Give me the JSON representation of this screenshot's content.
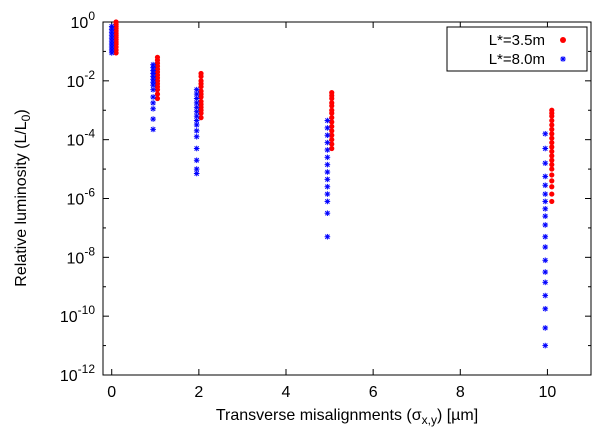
{
  "chart_data": {
    "type": "scatter",
    "xlabel": "Transverse misalignments (σx,y) [µm]",
    "xlabel_parts": {
      "before": "Transverse misalignments (σ",
      "sub": "x,y",
      "after": ") [µm]"
    },
    "ylabel": "Relative luminosity (L/L0)",
    "ylabel_parts": {
      "before": "Relative luminosity (L/L",
      "sub": "0",
      "after": ")"
    },
    "xlim": [
      -0.2,
      11
    ],
    "ylim_log10": [
      -12,
      0
    ],
    "y_scale": "log",
    "x_ticks": [
      0,
      2,
      4,
      6,
      8,
      10
    ],
    "x_tick_labels": [
      "0",
      "2",
      "4",
      "6",
      "8",
      "10"
    ],
    "y_ticks_log10": [
      0,
      -2,
      -4,
      -6,
      -8,
      -10,
      -12
    ],
    "y_tick_base": "10",
    "y_tick_exponents": [
      "0",
      "-2",
      "-4",
      "-6",
      "-8",
      "-10",
      "-12"
    ],
    "grid": false,
    "legend_position": "top-right",
    "series": [
      {
        "name": "L*=3.5m",
        "color": "#ff0000",
        "marker": "circle",
        "points": [
          [
            0.1,
            0.0
          ],
          [
            0.1,
            -0.08
          ],
          [
            0.1,
            -0.15
          ],
          [
            0.1,
            -0.22
          ],
          [
            0.1,
            -0.3
          ],
          [
            0.1,
            -0.38
          ],
          [
            0.1,
            -0.45
          ],
          [
            0.1,
            -0.52
          ],
          [
            0.1,
            -0.6
          ],
          [
            0.1,
            -0.68
          ],
          [
            0.1,
            -0.75
          ],
          [
            0.1,
            -0.85
          ],
          [
            0.1,
            -0.95
          ],
          [
            0.1,
            -1.05
          ],
          [
            1.05,
            -1.2
          ],
          [
            1.05,
            -1.3
          ],
          [
            1.05,
            -1.4
          ],
          [
            1.05,
            -1.5
          ],
          [
            1.05,
            -1.6
          ],
          [
            1.05,
            -1.7
          ],
          [
            1.05,
            -1.8
          ],
          [
            1.05,
            -1.9
          ],
          [
            1.05,
            -2.0
          ],
          [
            1.05,
            -2.1
          ],
          [
            1.05,
            -2.2
          ],
          [
            1.05,
            -2.3
          ],
          [
            1.05,
            -2.45
          ],
          [
            1.05,
            -2.6
          ],
          [
            2.05,
            -1.75
          ],
          [
            2.05,
            -1.85
          ],
          [
            2.05,
            -2.0
          ],
          [
            2.05,
            -2.1
          ],
          [
            2.05,
            -2.2
          ],
          [
            2.05,
            -2.35
          ],
          [
            2.05,
            -2.45
          ],
          [
            2.05,
            -2.55
          ],
          [
            2.05,
            -2.7
          ],
          [
            2.05,
            -2.8
          ],
          [
            2.05,
            -2.9
          ],
          [
            2.05,
            -3.0
          ],
          [
            2.05,
            -3.1
          ],
          [
            2.05,
            -3.25
          ],
          [
            5.05,
            -2.4
          ],
          [
            5.05,
            -2.5
          ],
          [
            5.05,
            -2.6
          ],
          [
            5.05,
            -2.75
          ],
          [
            5.05,
            -2.85
          ],
          [
            5.05,
            -3.0
          ],
          [
            5.05,
            -3.1
          ],
          [
            5.05,
            -3.25
          ],
          [
            5.05,
            -3.4
          ],
          [
            5.05,
            -3.55
          ],
          [
            5.05,
            -3.7
          ],
          [
            5.05,
            -3.85
          ],
          [
            5.05,
            -4.0
          ],
          [
            5.05,
            -4.15
          ],
          [
            5.05,
            -4.3
          ],
          [
            10.1,
            -3.0
          ],
          [
            10.1,
            -3.1
          ],
          [
            10.1,
            -3.2
          ],
          [
            10.1,
            -3.35
          ],
          [
            10.1,
            -3.5
          ],
          [
            10.1,
            -3.65
          ],
          [
            10.1,
            -3.8
          ],
          [
            10.1,
            -3.95
          ],
          [
            10.1,
            -4.1
          ],
          [
            10.1,
            -4.25
          ],
          [
            10.1,
            -4.4
          ],
          [
            10.1,
            -4.55
          ],
          [
            10.1,
            -4.7
          ],
          [
            10.1,
            -4.85
          ],
          [
            10.1,
            -5.0
          ],
          [
            10.1,
            -5.2
          ],
          [
            10.1,
            -5.4
          ],
          [
            10.1,
            -5.6
          ],
          [
            10.1,
            -5.85
          ],
          [
            10.1,
            -6.1
          ]
        ]
      },
      {
        "name": "L*=8.0m",
        "color": "#0000ff",
        "marker": "star",
        "points": [
          [
            0.0,
            -0.15
          ],
          [
            0.0,
            -0.25
          ],
          [
            0.0,
            -0.35
          ],
          [
            0.0,
            -0.45
          ],
          [
            0.0,
            -0.55
          ],
          [
            0.0,
            -0.65
          ],
          [
            0.0,
            -0.75
          ],
          [
            0.0,
            -0.85
          ],
          [
            0.0,
            -0.95
          ],
          [
            0.0,
            -1.05
          ],
          [
            0.95,
            -1.45
          ],
          [
            0.95,
            -1.55
          ],
          [
            0.95,
            -1.65
          ],
          [
            0.95,
            -1.75
          ],
          [
            0.95,
            -1.85
          ],
          [
            0.95,
            -1.95
          ],
          [
            0.95,
            -2.05
          ],
          [
            0.95,
            -2.15
          ],
          [
            0.95,
            -2.3
          ],
          [
            0.95,
            -2.55
          ],
          [
            0.95,
            -2.75
          ],
          [
            0.95,
            -2.95
          ],
          [
            0.95,
            -3.3
          ],
          [
            0.95,
            -3.65
          ],
          [
            1.95,
            -2.3
          ],
          [
            1.95,
            -2.45
          ],
          [
            1.95,
            -2.6
          ],
          [
            1.95,
            -2.75
          ],
          [
            1.95,
            -2.9
          ],
          [
            1.95,
            -3.05
          ],
          [
            1.95,
            -3.2
          ],
          [
            1.95,
            -3.35
          ],
          [
            1.95,
            -3.5
          ],
          [
            1.95,
            -3.7
          ],
          [
            1.95,
            -3.9
          ],
          [
            1.95,
            -4.3
          ],
          [
            1.95,
            -4.7
          ],
          [
            1.95,
            -5.0
          ],
          [
            1.95,
            -5.15
          ],
          [
            4.95,
            -3.35
          ],
          [
            4.95,
            -3.6
          ],
          [
            4.95,
            -3.85
          ],
          [
            4.95,
            -4.1
          ],
          [
            4.95,
            -4.35
          ],
          [
            4.95,
            -4.6
          ],
          [
            4.95,
            -4.85
          ],
          [
            4.95,
            -5.1
          ],
          [
            4.95,
            -5.35
          ],
          [
            4.95,
            -5.6
          ],
          [
            4.95,
            -5.85
          ],
          [
            4.95,
            -6.1
          ],
          [
            4.95,
            -6.5
          ],
          [
            4.95,
            -7.3
          ],
          [
            9.95,
            -3.8
          ],
          [
            9.95,
            -4.3
          ],
          [
            9.95,
            -4.8
          ],
          [
            9.95,
            -5.25
          ],
          [
            9.95,
            -5.55
          ],
          [
            9.95,
            -5.85
          ],
          [
            9.95,
            -6.1
          ],
          [
            9.95,
            -6.35
          ],
          [
            9.95,
            -6.6
          ],
          [
            9.95,
            -6.9
          ],
          [
            9.95,
            -7.3
          ],
          [
            9.95,
            -7.65
          ],
          [
            9.95,
            -8.1
          ],
          [
            9.95,
            -8.5
          ],
          [
            9.95,
            -8.85
          ],
          [
            9.95,
            -9.3
          ],
          [
            9.95,
            -9.75
          ],
          [
            9.95,
            -10.4
          ],
          [
            9.95,
            -11.0
          ]
        ]
      }
    ]
  }
}
